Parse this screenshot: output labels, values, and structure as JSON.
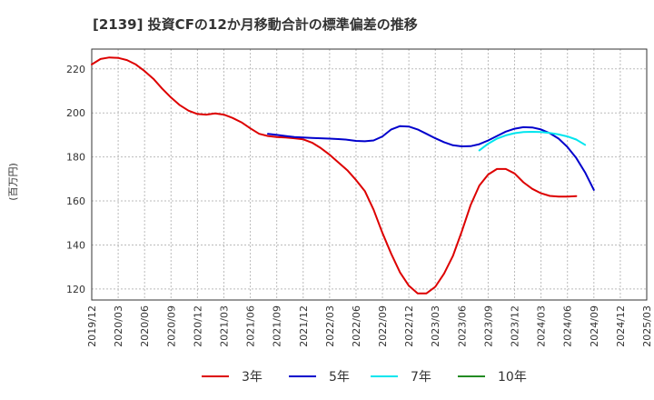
{
  "chart_data": {
    "type": "line",
    "title": "[2139]  投資CFの12か月移動合計の標準偏差の推移",
    "ylabel": "(百万円)",
    "ylim": [
      115,
      229
    ],
    "yticks": [
      120,
      140,
      160,
      180,
      200,
      220
    ],
    "xticks": [
      "2019/12",
      "2020/03",
      "2020/06",
      "2020/09",
      "2020/12",
      "2021/03",
      "2021/06",
      "2021/09",
      "2021/12",
      "2022/03",
      "2022/06",
      "2022/09",
      "2022/12",
      "2023/03",
      "2023/06",
      "2023/09",
      "2023/12",
      "2024/03",
      "2024/06",
      "2024/09",
      "2024/12",
      "2025/03"
    ],
    "grid": true,
    "legend_position": "bottom",
    "series": [
      {
        "name": "3年",
        "color": "#dd0000",
        "start": "2019/12",
        "values": [
          222,
          224.5,
          225.2,
          225,
          224,
          222,
          219,
          215.5,
          211,
          207,
          203.5,
          201,
          199.5,
          199.2,
          199.8,
          199.2,
          197.7,
          195.7,
          193,
          190.5,
          189.5,
          189,
          188.8,
          188.5,
          188,
          186.5,
          184,
          181,
          177.5,
          174,
          169.5,
          164.5,
          156,
          145.5,
          136,
          127.5,
          121.5,
          118,
          118,
          121,
          127,
          135,
          146,
          158,
          167,
          172,
          174.5,
          174.5,
          172.5,
          168.5,
          165.5,
          163.5,
          162.3,
          162,
          162,
          162.2
        ]
      },
      {
        "name": "5年",
        "color": "#0000cc",
        "start": "2021/08",
        "values": [
          190.5,
          190,
          189.5,
          189,
          188.8,
          188.6,
          188.5,
          188.3,
          188.1,
          187.8,
          187.3,
          187.1,
          187.5,
          189.3,
          192.5,
          194,
          193.8,
          192.5,
          190.5,
          188.5,
          186.7,
          185.3,
          184.8,
          184.9,
          185.8,
          187.5,
          189.5,
          191.5,
          192.8,
          193.5,
          193.4,
          192.5,
          190.8,
          188.3,
          184.5,
          179.5,
          173,
          165
        ]
      },
      {
        "name": "7年",
        "color": "#00e5ee",
        "start": "2023/08",
        "values": [
          183,
          186,
          188.3,
          189.8,
          190.8,
          191.3,
          191.4,
          191.3,
          190.9,
          190.2,
          189.3,
          187.9,
          185.5
        ]
      },
      {
        "name": "10年",
        "color": "#228b22",
        "start": "2024/09",
        "values": []
      }
    ]
  }
}
